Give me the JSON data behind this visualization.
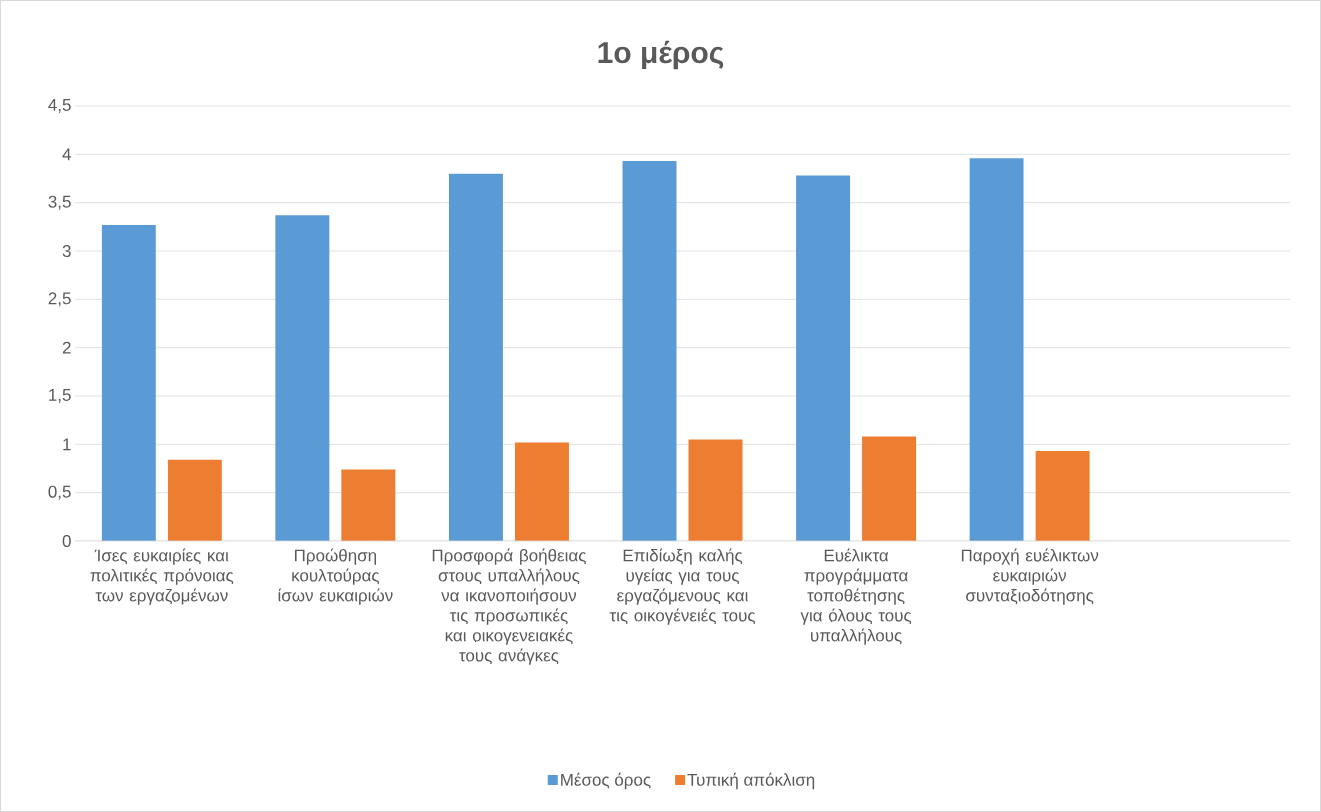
{
  "chart_data": {
    "type": "bar",
    "title": "1ο μέρος",
    "categories": [
      "Ίσες ευκαιρίες και πολιτικές πρόνοιας των εργαζομένων",
      "Προώθηση κουλτούρας ίσων ευκαιριών",
      "Προσφορά βοήθειας στους υπαλλήλους να ικανοποιήσουν τις προσωπικές και οικογενειακές τους ανάγκες",
      "Επιδίωξη καλής υγείας για τους εργαζόμενους και τις οικογένειές τους",
      "Ευέλικτα προγράμματα τοποθέτησης για όλους τους υπαλλήλους",
      "Παροχή ευέλικτων ευκαιριών συνταξιοδότησης",
      null
    ],
    "series": [
      {
        "name": "Μέσος όρος",
        "color": "#5b9bd5",
        "values": [
          3.27,
          3.37,
          3.8,
          3.93,
          3.78,
          3.96,
          null
        ]
      },
      {
        "name": "Τυπική απόκλιση",
        "color": "#ed7d31",
        "values": [
          0.84,
          0.74,
          1.02,
          1.05,
          1.08,
          0.93,
          null
        ]
      }
    ],
    "ylim": [
      0,
      4.5
    ],
    "yticks": [
      0,
      {
        "value": 0.5,
        "label": "0,5"
      },
      1,
      {
        "value": 1.5,
        "label": "1,5"
      },
      2,
      {
        "value": 2.5,
        "label": "2,5"
      },
      3,
      {
        "value": 3.5,
        "label": "3,5"
      },
      4,
      {
        "value": 4.5,
        "label": "4,5"
      }
    ],
    "grid": "y",
    "legend": "bottom"
  }
}
